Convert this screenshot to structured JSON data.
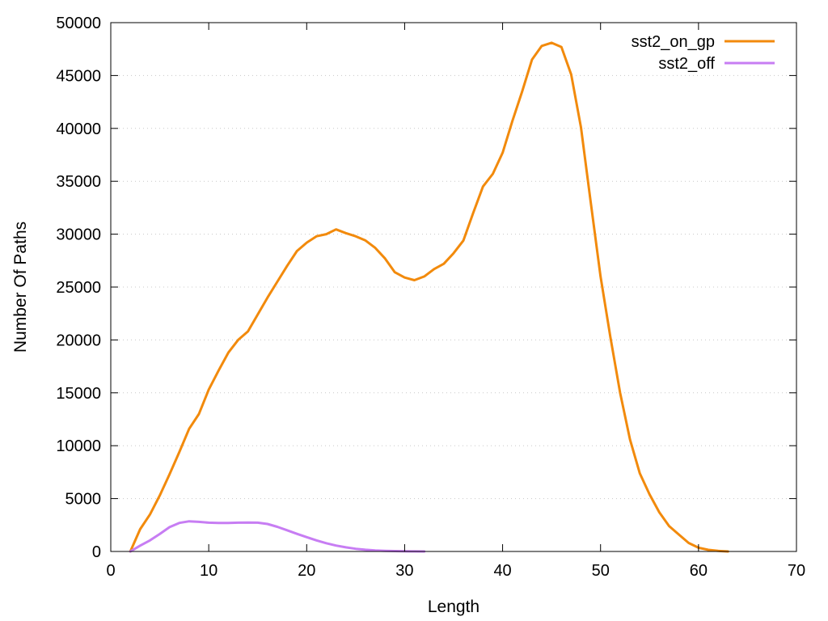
{
  "chart_data": {
    "type": "line",
    "title": "",
    "xlabel": "Length",
    "ylabel": "Number Of Paths",
    "xlim": [
      0,
      70
    ],
    "ylim": [
      0,
      50000
    ],
    "xticks": [
      0,
      10,
      20,
      30,
      40,
      50,
      60,
      70
    ],
    "yticks": [
      0,
      5000,
      10000,
      15000,
      20000,
      25000,
      30000,
      35000,
      40000,
      45000,
      50000
    ],
    "grid": "horizontal-dotted",
    "legend_position": "top-right",
    "series": [
      {
        "name": "sst2_on_gp",
        "color": "#f28a0c",
        "x": [
          2,
          3,
          4,
          5,
          6,
          7,
          8,
          9,
          10,
          11,
          12,
          13,
          14,
          15,
          16,
          17,
          18,
          19,
          20,
          21,
          22,
          23,
          24,
          25,
          26,
          27,
          28,
          29,
          30,
          31,
          32,
          33,
          34,
          35,
          36,
          37,
          38,
          39,
          40,
          41,
          42,
          43,
          44,
          45,
          46,
          47,
          48,
          49,
          50,
          51,
          52,
          53,
          54,
          55,
          56,
          57,
          58,
          59,
          60,
          61,
          62,
          63
        ],
        "y": [
          0,
          2100,
          3500,
          5300,
          7300,
          9400,
          11600,
          13000,
          15300,
          17100,
          18800,
          20000,
          20800,
          22400,
          24000,
          25500,
          27000,
          28400,
          29200,
          29800,
          30000,
          30450,
          30100,
          29800,
          29400,
          28700,
          27700,
          26400,
          25900,
          25650,
          26000,
          26700,
          27200,
          28200,
          29400,
          32000,
          34500,
          35700,
          37700,
          40700,
          43500,
          46500,
          47800,
          48100,
          47700,
          45100,
          40100,
          33000,
          26000,
          20300,
          15000,
          10600,
          7400,
          5400,
          3700,
          2400,
          1600,
          800,
          350,
          150,
          50,
          0
        ]
      },
      {
        "name": "sst2_off",
        "color": "#c77df3",
        "x": [
          2,
          3,
          4,
          5,
          6,
          7,
          8,
          9,
          10,
          11,
          12,
          13,
          14,
          15,
          16,
          17,
          18,
          19,
          20,
          21,
          22,
          23,
          24,
          25,
          26,
          27,
          28,
          29,
          30,
          31,
          32
        ],
        "y": [
          0,
          550,
          1050,
          1650,
          2300,
          2700,
          2850,
          2800,
          2720,
          2700,
          2700,
          2720,
          2740,
          2720,
          2600,
          2330,
          2000,
          1670,
          1350,
          1050,
          780,
          560,
          390,
          250,
          160,
          100,
          60,
          40,
          20,
          10,
          0
        ]
      }
    ]
  }
}
